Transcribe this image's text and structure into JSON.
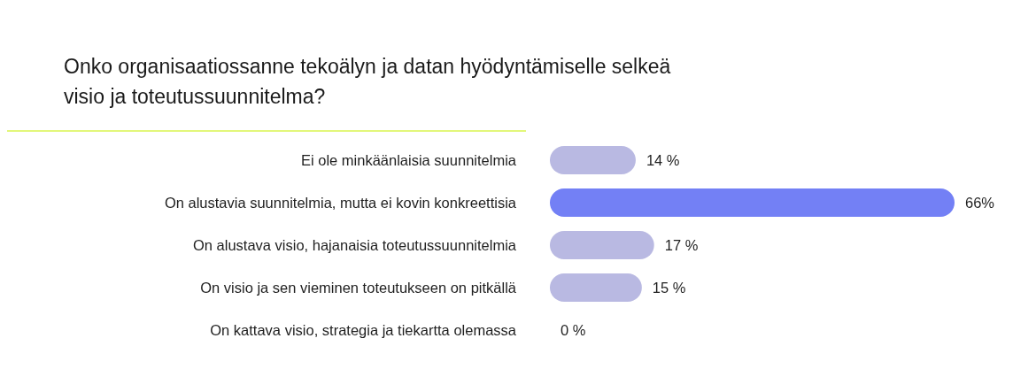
{
  "chart_data": {
    "type": "bar",
    "orientation": "horizontal",
    "title": "Onko organisaatiossanne tekoälyn ja datan hyödyntämiselle selkeä visio ja toteutussuunnitelma?",
    "categories": [
      "Ei ole minkäänlaisia suunnitelmia",
      "On alustavia suunnitelmia, mutta ei kovin konkreettisia",
      "On alustava visio, hajanaisia toteutussuunnitelmia",
      "On visio ja sen vieminen toteutukseen on pitkällä",
      "On kattava visio, strategia  ja tiekartta olemassa"
    ],
    "values": [
      14,
      66,
      17,
      15,
      0
    ],
    "value_labels": [
      "14 %",
      "66%",
      "17 %",
      "15 %",
      "0 %"
    ],
    "colors": [
      "#b9b9e2",
      "#7380f5",
      "#b9b9e2",
      "#b9b9e2",
      "#b9b9e2"
    ]
  }
}
